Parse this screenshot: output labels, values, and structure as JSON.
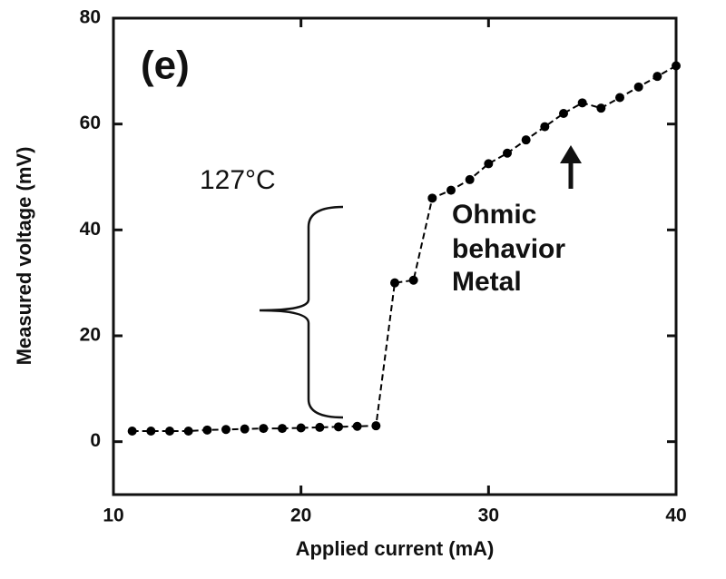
{
  "chart_data": {
    "type": "line",
    "x_label": "Applied current (mA)",
    "y_label": "Measured voltage (mV)",
    "annotations": [
      "(e)",
      "127°C",
      "Ohmic",
      "behavior",
      "Metal"
    ],
    "x": [
      11,
      12,
      13,
      14,
      15,
      16,
      17,
      18,
      19,
      20,
      21,
      22,
      23,
      24,
      25,
      26,
      27,
      28,
      29,
      30,
      31,
      32,
      33,
      34,
      35,
      36,
      37,
      38,
      39,
      40
    ],
    "series": [
      {
        "name": "Measured voltage",
        "color": "#000000",
        "values": [
          2,
          2,
          2,
          2,
          2.2,
          2.3,
          2.4,
          2.5,
          2.5,
          2.6,
          2.7,
          2.8,
          2.9,
          3,
          30,
          30.5,
          46,
          47.5,
          49.5,
          52.5,
          54.5,
          57,
          59.5,
          62,
          64,
          63,
          65,
          67,
          69,
          71
        ]
      }
    ],
    "xlim": [
      10,
      40
    ],
    "xticks": [
      10,
      20,
      30,
      40
    ],
    "ylim": [
      -10,
      80
    ],
    "yticks": [
      0,
      20,
      40,
      60,
      80
    ],
    "grid": false
  }
}
